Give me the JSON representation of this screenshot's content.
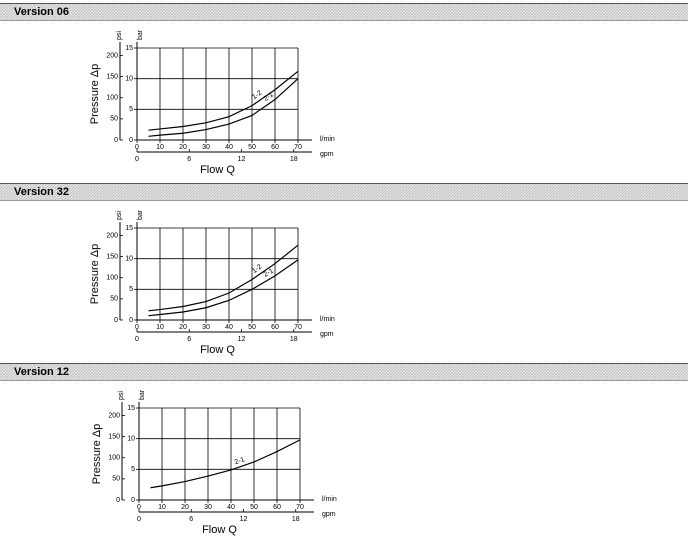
{
  "chart_data": [
    {
      "type": "line",
      "title": "Version 06",
      "xlabel": "Flow Q",
      "ylabel": "Pressure Δp",
      "xunit": "l/min",
      "x2unit": "gpm",
      "yunit": "bar",
      "y2unit": "psi",
      "x": [
        5,
        10,
        20,
        30,
        40,
        50,
        60,
        70
      ],
      "xlim": [
        0,
        70
      ],
      "xticks": [
        0,
        10,
        20,
        30,
        40,
        50,
        60,
        70
      ],
      "x2lim": [
        0,
        18.49
      ],
      "x2ticks": [
        0,
        6,
        12,
        18
      ],
      "ylim": [
        0,
        15
      ],
      "yticks": [
        0,
        5,
        10,
        15
      ],
      "y2lim": [
        0,
        217.6
      ],
      "y2ticks": [
        0,
        50,
        100,
        150,
        200
      ],
      "grid": true,
      "series": [
        {
          "name": "1-2",
          "color": "#000000",
          "values": [
            1.6,
            1.8,
            2.2,
            2.8,
            3.8,
            5.6,
            8.2,
            11.2
          ]
        },
        {
          "name": "2-1",
          "color": "#000000",
          "values": [
            0.6,
            0.8,
            1.1,
            1.7,
            2.6,
            4.0,
            6.6,
            10
          ]
        }
      ]
    },
    {
      "type": "line",
      "title": "Version 32",
      "xlabel": "Flow Q",
      "ylabel": "Pressure Δp",
      "xunit": "l/min",
      "x2unit": "gpm",
      "yunit": "bar",
      "y2unit": "psi",
      "x": [
        5,
        10,
        20,
        30,
        40,
        50,
        60,
        70
      ],
      "xlim": [
        0,
        70
      ],
      "xticks": [
        0,
        10,
        20,
        30,
        40,
        50,
        60,
        70
      ],
      "x2lim": [
        0,
        18.49
      ],
      "x2ticks": [
        0,
        6,
        12,
        18
      ],
      "ylim": [
        0,
        15
      ],
      "yticks": [
        0,
        5,
        10,
        15
      ],
      "y2lim": [
        0,
        217.6
      ],
      "y2ticks": [
        0,
        50,
        100,
        150,
        200
      ],
      "grid": true,
      "series": [
        {
          "name": "1-2",
          "color": "#000000",
          "values": [
            1.5,
            1.7,
            2.2,
            3.0,
            4.4,
            6.6,
            9.2,
            12.2
          ]
        },
        {
          "name": "2-1",
          "color": "#000000",
          "values": [
            0.7,
            0.9,
            1.3,
            2.0,
            3.2,
            5.0,
            7.2,
            9.8
          ]
        }
      ]
    },
    {
      "type": "line",
      "title": "Version 12",
      "xlabel": "Flow Q",
      "ylabel": "Pressure Δp",
      "xunit": "l/min",
      "x2unit": "gpm",
      "yunit": "bar",
      "y2unit": "psi",
      "x": [
        5,
        10,
        20,
        30,
        40,
        50,
        60,
        70
      ],
      "xlim": [
        0,
        70
      ],
      "xticks": [
        0,
        10,
        20,
        30,
        40,
        50,
        60,
        70
      ],
      "x2lim": [
        0,
        18.49
      ],
      "x2ticks": [
        0,
        6,
        12,
        18
      ],
      "ylim": [
        0,
        15
      ],
      "yticks": [
        0,
        5,
        10,
        15
      ],
      "y2lim": [
        0,
        217.6
      ],
      "y2ticks": [
        0,
        50,
        100,
        150,
        200
      ],
      "grid": true,
      "series": [
        {
          "name": "2-1",
          "color": "#000000",
          "values": [
            2.0,
            2.3,
            3.0,
            3.9,
            4.9,
            6.2,
            7.9,
            9.8
          ]
        }
      ]
    }
  ]
}
